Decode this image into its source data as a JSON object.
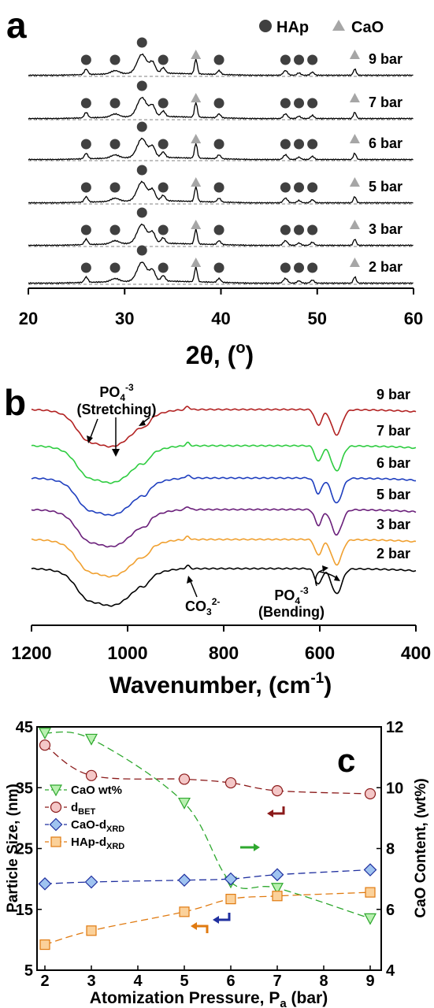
{
  "colors": {
    "axis": "#000000",
    "hap_marker": "#404040",
    "cao_marker": "#a6a6a6",
    "dashed_baseline": "#808080",
    "ftir_9bar": "#b22222",
    "ftir_7bar": "#2ecc40",
    "ftir_6bar": "#1f3fbf",
    "ftir_5bar": "#6a1f7a",
    "ftir_3bar": "#f0a030",
    "ftir_2bar": "#000000",
    "cao_wt": "#2ea82e",
    "d_bet": "#8b1a1a",
    "cao_dxrd": "#1f2f9f",
    "hap_dxrd": "#e07a10"
  },
  "panel_a": {
    "label": "a",
    "legend": {
      "hap": "HAp",
      "cao": "CaO"
    },
    "xlabel_main": "2θ, (",
    "xlabel_sup": "o",
    "xlabel_end": ")",
    "curve_labels": [
      "9 bar",
      "7 bar",
      "6 bar",
      "5 bar",
      "3 bar",
      "2 bar"
    ]
  },
  "panel_b": {
    "label": "b",
    "curve_labels": [
      "9 bar",
      "7 bar",
      "6 bar",
      "5 bar",
      "3 bar",
      "2 bar"
    ],
    "xlabel_main": "Wavenumber, (cm",
    "xlabel_sup": "-1",
    "xlabel_end": ")",
    "ann_stretch_1": "PO",
    "ann_stretch_sub": "4",
    "ann_stretch_sup": "-3",
    "ann_stretch_2": "(Stretching)",
    "ann_co3": "CO",
    "ann_co3_sub": "3",
    "ann_co3_sup": "2-",
    "ann_bend_1": "PO",
    "ann_bend_sub": "4",
    "ann_bend_sup": "-3",
    "ann_bend_2": "(Bending)"
  },
  "panel_c": {
    "label": "c",
    "ylabel_left": "Particle Size, (nm)",
    "ylabel_right": "CaO Content, (wt%)",
    "xlabel_main": "Atomization Pressure, P",
    "xlabel_sub": "a",
    "xlabel_end": " (bar)",
    "legend": [
      {
        "key": "cao_wt",
        "text": "CaO wt%",
        "sub": ""
      },
      {
        "key": "d_bet",
        "text": "d",
        "sub": "BET"
      },
      {
        "key": "cao_dxrd",
        "text": "CaO-d",
        "sub": "XRD"
      },
      {
        "key": "hap_dxrd",
        "text": "HAp-d",
        "sub": "XRD"
      }
    ]
  },
  "chart_data": [
    {
      "type": "line",
      "panel": "a",
      "xlabel": "2θ, (o)",
      "ylabel": "",
      "xlim": [
        20,
        60
      ],
      "xticks": [
        20,
        30,
        40,
        50,
        60
      ],
      "series": [
        {
          "name": "9 bar",
          "values": []
        },
        {
          "name": "7 bar",
          "values": []
        },
        {
          "name": "6 bar",
          "values": []
        },
        {
          "name": "5 bar",
          "values": []
        },
        {
          "name": "3 bar",
          "values": []
        },
        {
          "name": "2 bar",
          "values": []
        }
      ],
      "hap_peaks_2theta": [
        26,
        29,
        31.8,
        34,
        39.8,
        46.7,
        48.1,
        49.5
      ],
      "cao_peaks_2theta": [
        37.4,
        53.9
      ],
      "legend": [
        "HAp",
        "CaO"
      ]
    },
    {
      "type": "line",
      "panel": "b",
      "xlabel": "Wavenumber, (cm-1)",
      "ylabel": "",
      "xlim": [
        1200,
        400
      ],
      "xticks": [
        1200,
        1000,
        800,
        600,
        400
      ],
      "series": [
        {
          "name": "9 bar",
          "values": []
        },
        {
          "name": "7 bar",
          "values": []
        },
        {
          "name": "6 bar",
          "values": []
        },
        {
          "name": "5 bar",
          "values": []
        },
        {
          "name": "3 bar",
          "values": []
        },
        {
          "name": "2 bar",
          "values": []
        }
      ],
      "annotations": [
        "PO4-3 (Stretching)",
        "CO32-",
        "PO4-3 (Bending)"
      ]
    },
    {
      "type": "line",
      "panel": "c",
      "x": [
        2,
        3,
        5,
        6,
        7,
        9
      ],
      "xlabel": "Atomization Pressure, Pa (bar)",
      "xlim": [
        2,
        9
      ],
      "xticks": [
        2,
        3,
        4,
        5,
        6,
        7,
        8,
        9
      ],
      "ylabel": "Particle Size, (nm)",
      "ylim": [
        5,
        45
      ],
      "yticks": [
        5,
        15,
        25,
        35,
        45
      ],
      "y2label": "CaO Content, (wt%)",
      "y2lim": [
        4,
        12
      ],
      "y2ticks": [
        4,
        6,
        8,
        10,
        12
      ],
      "series": [
        {
          "name": "CaO wt%",
          "axis": "right",
          "marker": "triangle-down",
          "values": [
            11.8,
            11.6,
            9.5,
            6.9,
            6.7,
            5.7
          ]
        },
        {
          "name": "dBET",
          "axis": "left",
          "marker": "circle",
          "values": [
            42.0,
            37.0,
            36.4,
            35.8,
            34.5,
            34.0
          ]
        },
        {
          "name": "CaO-dXRD",
          "axis": "left",
          "marker": "diamond",
          "values": [
            19.2,
            19.5,
            19.8,
            20.0,
            20.7,
            21.5
          ]
        },
        {
          "name": "HAp-dXRD",
          "axis": "left",
          "marker": "square",
          "values": [
            9.2,
            11.5,
            14.6,
            16.7,
            17.2,
            17.8
          ]
        }
      ]
    }
  ]
}
